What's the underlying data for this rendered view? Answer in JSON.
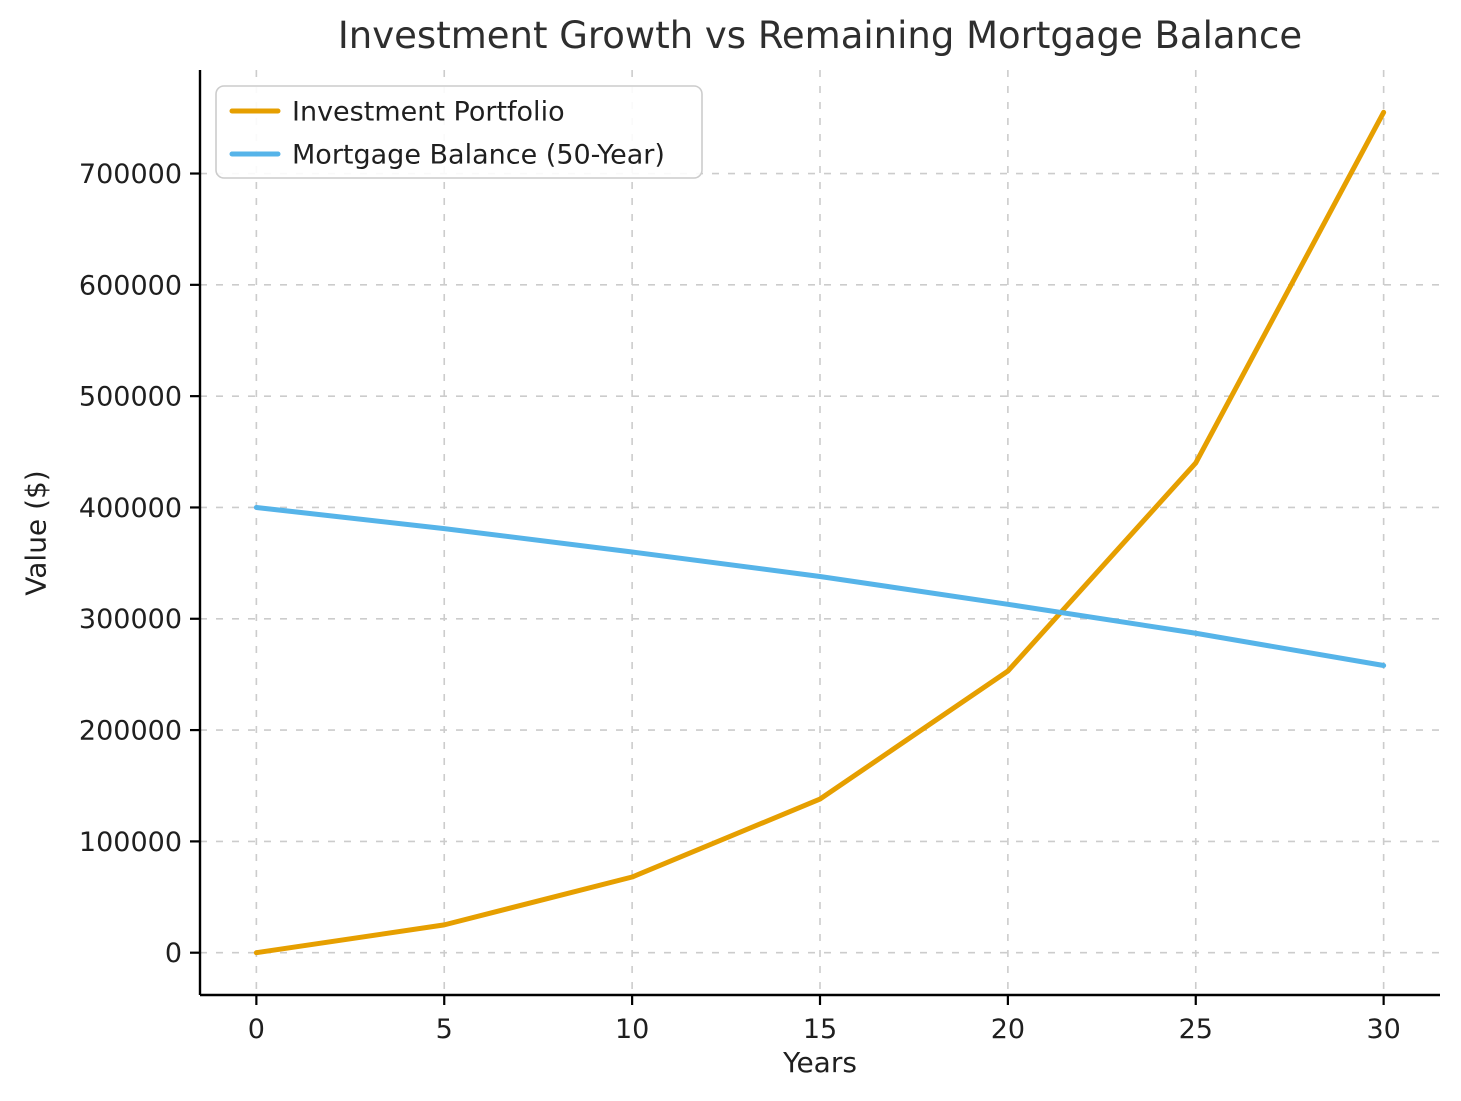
{
  "chart_data": {
    "type": "line",
    "title": "Investment Growth vs Remaining Mortgage Balance",
    "xlabel": "Years",
    "ylabel": "Value ($)",
    "x": [
      0,
      5,
      10,
      15,
      20,
      25,
      30
    ],
    "series": [
      {
        "name": "Investment Portfolio",
        "color": "#E69F00",
        "values": [
          0,
          25000,
          68000,
          138000,
          253000,
          440000,
          755000
        ]
      },
      {
        "name": "Mortgage Balance (50-Year)",
        "color": "#56B4E9",
        "values": [
          400000,
          381000,
          360000,
          338000,
          313000,
          287000,
          258000
        ]
      }
    ],
    "xticks": [
      0,
      5,
      10,
      15,
      20,
      25,
      30
    ],
    "yticks": [
      0,
      100000,
      200000,
      300000,
      400000,
      500000,
      600000,
      700000
    ],
    "xlim": [
      -1.5,
      31.5
    ],
    "ylim": [
      -38000,
      793000
    ],
    "grid": true,
    "legend_position": "upper left"
  }
}
